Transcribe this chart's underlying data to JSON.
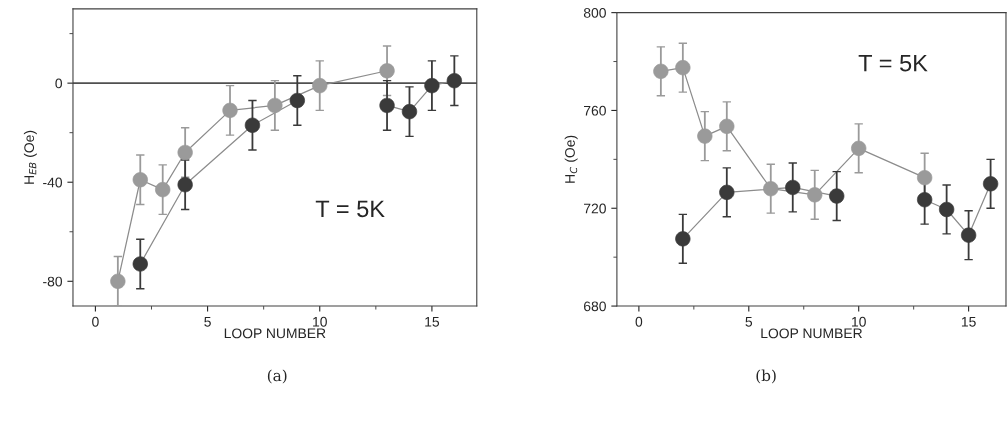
{
  "chart_data": [
    {
      "type": "line",
      "xlabel": "LOOP NUMBER",
      "ylabel": "H$_{EB}$ (Oe)",
      "xlim": [
        -1,
        17
      ],
      "xticks": [
        0,
        5,
        10,
        15
      ],
      "ylim": [
        -90,
        30
      ],
      "yticks": [
        -80,
        -40,
        0
      ],
      "marker": "circle",
      "line_style": "solid",
      "grid": false,
      "series": [
        {
          "color": "#9a9a9a",
          "x": [
            1,
            2,
            3,
            4,
            6,
            8,
            10,
            13
          ],
          "values": [
            -80,
            -39,
            -43,
            -28,
            -11,
            -9,
            -1,
            5
          ],
          "errors": [
            10,
            10,
            10,
            10,
            10,
            10,
            10,
            10
          ]
        },
        {
          "color": "#3a3a3a",
          "x": [
            2,
            4,
            7,
            9,
            11,
            13,
            14,
            15,
            16
          ],
          "values": [
            -73,
            -41,
            -17,
            -7,
            null,
            -9,
            -11.5,
            -1,
            1
          ],
          "errors": [
            10,
            10,
            10,
            10,
            null,
            10,
            10,
            10,
            10
          ]
        }
      ],
      "ref_lines": [
        {
          "axis": "y",
          "value": 0,
          "color": "#505050",
          "line_style": "solid"
        }
      ],
      "annotations": [
        "T = 5K",
        "(a)"
      ]
    },
    {
      "type": "line",
      "xlabel": "LOOP NUMBER",
      "ylabel": "H$_{C}$ (Oe)",
      "xlim": [
        -1,
        16.7
      ],
      "xticks": [
        0,
        5,
        10,
        15
      ],
      "ylim": [
        680,
        800
      ],
      "yticks": [
        680,
        720,
        760,
        800
      ],
      "marker": "circle",
      "line_style": "solid",
      "grid": false,
      "series": [
        {
          "color": "#9a9a9a",
          "x": [
            1,
            2,
            3,
            4,
            6,
            8,
            10,
            13
          ],
          "values": [
            776,
            777.5,
            749.5,
            753.5,
            728,
            725.5,
            744.5,
            732.5
          ],
          "errors": [
            10,
            10,
            10,
            10,
            10,
            10,
            10,
            10
          ]
        },
        {
          "color": "#3a3a3a",
          "x": [
            2,
            4,
            7,
            9,
            11,
            13,
            14,
            15,
            16
          ],
          "values": [
            707.5,
            726.5,
            728.5,
            725,
            null,
            723.5,
            719.5,
            709,
            730
          ],
          "errors": [
            10,
            10,
            10,
            10,
            null,
            10,
            10,
            10,
            10
          ]
        }
      ],
      "annotations": [
        "T = 5K",
        "(b)"
      ]
    }
  ]
}
